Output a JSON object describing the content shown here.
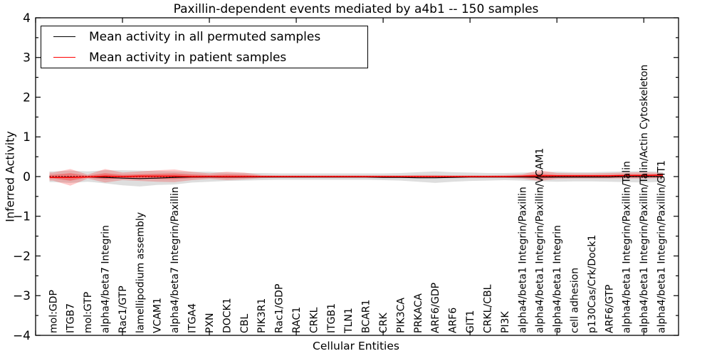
{
  "chart_data": {
    "type": "line",
    "title": "Paxillin-dependent events mediated by a4b1 -- 150 samples",
    "xlabel": "Cellular Entities",
    "ylabel": "Inferred Activity",
    "xlim": [
      0,
      37
    ],
    "ylim": [
      -4,
      4
    ],
    "y_tick_labels": [
      "4",
      "3",
      "2",
      "1",
      "0",
      "−1",
      "−2",
      "−3",
      "−4"
    ],
    "y_major_tick_step": 1,
    "y_minor_tick_step": 0.5,
    "x_major_tick_step": 5,
    "grid": false,
    "legend_position": "upper left",
    "categories": [
      "mol:GDP",
      "ITGB7",
      "mol:GTP",
      "alpha4/beta7 Integrin",
      "Rac1/GTP",
      "lamellipodium assembly",
      "VCAM1",
      "alpha4/beta7 Integrin/Paxillin",
      "ITGA4",
      "PXN",
      "DOCK1",
      "CBL",
      "PIK3R1",
      "Rac1/GDP",
      "RAC1",
      "CRKL",
      "ITGB1",
      "TLN1",
      "BCAR1",
      "CRK",
      "PIK3CA",
      "PRKACA",
      "ARF6/GDP",
      "ARF6",
      "GIT1",
      "CRKL/CBL",
      "PI3K",
      "alpha4/beta1 Integrin/Paxillin",
      "alpha4/beta1 Integrin/Paxillin/VCAM1",
      "alpha4/beta1 Integrin",
      "cell adhesion",
      "p130Cas/Crk/Dock1",
      "ARF6/GTP",
      "alpha4/beta1 Integrin/Paxillin/Talin",
      "alpha4/beta1 Integrin/Paxillin/Talin/Actin Cytoskeleton",
      "alpha4/beta1 Integrin/Paxillin/GIT1"
    ],
    "series": [
      {
        "name": "Mean activity in all permuted samples",
        "color": "#000000",
        "values": [
          -0.02,
          -0.01,
          -0.01,
          -0.02,
          -0.04,
          -0.05,
          -0.04,
          -0.02,
          -0.01,
          -0.01,
          -0.01,
          -0.01,
          -0.01,
          -0.01,
          -0.01,
          -0.01,
          -0.01,
          -0.01,
          -0.01,
          -0.02,
          -0.02,
          -0.03,
          -0.03,
          -0.02,
          -0.01,
          -0.01,
          -0.01,
          -0.01,
          -0.01,
          -0.01,
          -0.01,
          -0.01,
          -0.01,
          0,
          0,
          0
        ]
      },
      {
        "name": "Mean activity in patient samples",
        "color": "#ff0000",
        "values": [
          -0.02,
          -0.02,
          -0.01,
          0.01,
          0,
          0.01,
          0.01,
          0.01,
          0,
          0,
          0,
          0,
          0,
          0,
          0,
          0,
          0,
          0,
          0,
          0,
          0,
          0,
          0,
          0,
          0,
          0,
          0,
          0.01,
          0.02,
          0.02,
          0.02,
          0.02,
          0.02,
          0.03,
          0.03,
          0.04
        ]
      }
    ],
    "bands": [
      {
        "name": "permuted-samples-std-band",
        "color": "#999999",
        "opacity": 0.32,
        "upper": [
          0.13,
          0.15,
          0.13,
          0.16,
          0.16,
          0.15,
          0.14,
          0.13,
          0.12,
          0.12,
          0.1,
          0.09,
          0.09,
          0.08,
          0.08,
          0.08,
          0.08,
          0.08,
          0.08,
          0.08,
          0.09,
          0.11,
          0.13,
          0.11,
          0.1,
          0.09,
          0.09,
          0.1,
          0.11,
          0.12,
          0.11,
          0.11,
          0.12,
          0.13,
          0.14,
          0.12
        ],
        "lower": [
          -0.14,
          -0.16,
          -0.13,
          -0.17,
          -0.22,
          -0.25,
          -0.21,
          -0.2,
          -0.15,
          -0.13,
          -0.11,
          -0.1,
          -0.09,
          -0.08,
          -0.08,
          -0.08,
          -0.08,
          -0.08,
          -0.08,
          -0.09,
          -0.1,
          -0.13,
          -0.16,
          -0.13,
          -0.11,
          -0.1,
          -0.09,
          -0.1,
          -0.12,
          -0.13,
          -0.12,
          -0.12,
          -0.13,
          -0.14,
          -0.15,
          -0.13
        ]
      },
      {
        "name": "patient-samples-std-band",
        "color": "#ff0000",
        "opacity": 0.22,
        "upper": [
          0.1,
          0.19,
          0.05,
          0.19,
          0.1,
          0.13,
          0.16,
          0.18,
          0.12,
          0.08,
          0.12,
          0.1,
          0.04,
          0.03,
          0.03,
          0.03,
          0.03,
          0.03,
          0.03,
          0.03,
          0.03,
          0.04,
          0.04,
          0.03,
          0.03,
          0.03,
          0.04,
          0.06,
          0.16,
          0.09,
          0.08,
          0.08,
          0.09,
          0.1,
          0.11,
          0.09
        ],
        "lower": [
          -0.1,
          -0.23,
          -0.05,
          -0.15,
          -0.09,
          -0.11,
          -0.13,
          -0.14,
          -0.09,
          -0.06,
          -0.09,
          -0.07,
          -0.04,
          -0.03,
          -0.03,
          -0.03,
          -0.03,
          -0.03,
          -0.03,
          -0.03,
          -0.03,
          -0.03,
          -0.03,
          -0.03,
          -0.03,
          -0.03,
          -0.03,
          -0.05,
          -0.11,
          -0.06,
          -0.05,
          -0.05,
          -0.05,
          -0.05,
          -0.05,
          -0.04
        ]
      },
      {
        "name": "patient-samples-inner-band",
        "color": "#ff0000",
        "opacity": 0.3,
        "scale_of": 1,
        "scale": 0.45
      }
    ],
    "reference_line": {
      "y": 0,
      "style": "dotted",
      "color": "#000000"
    }
  }
}
